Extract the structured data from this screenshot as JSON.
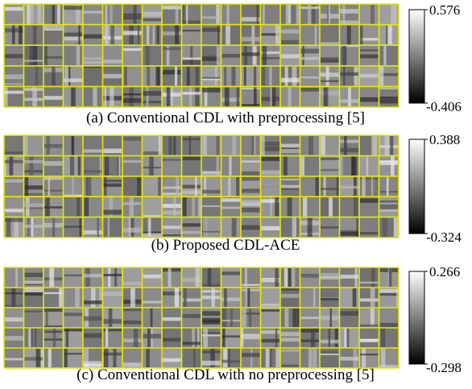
{
  "panels": [
    {
      "caption": "(a) Conventional CDL with preprocessing [5]",
      "colorbar": {
        "max": 0.576,
        "min": -0.406
      }
    },
    {
      "caption": "(b) Proposed CDL-ACE",
      "colorbar": {
        "max": 0.388,
        "min": -0.324
      }
    },
    {
      "caption": "(c) Conventional CDL with no preprocessing [5]",
      "colorbar": {
        "max": 0.266,
        "min": -0.298
      }
    }
  ]
}
